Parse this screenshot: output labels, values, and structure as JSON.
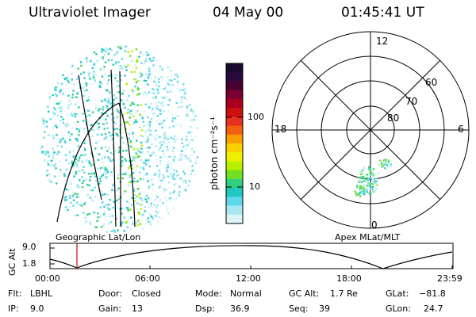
{
  "header": {
    "instrument": "Ultraviolet Imager",
    "date": "04 May 00",
    "time": "01:45:41 UT"
  },
  "geo_label": "Geographic Lat/Lon",
  "apex_label": "Apex MLat/MLT",
  "colorbar": {
    "label": "photon cm⁻²s⁻¹",
    "ticks": [
      "100",
      "10"
    ],
    "colors": [
      "#1a0a2e",
      "#2a0a3e",
      "#4a0033",
      "#7a0030",
      "#a8001e",
      "#cc1010",
      "#e83020",
      "#f06010",
      "#f8a000",
      "#fbd000",
      "#f0f000",
      "#b8f000",
      "#70e020",
      "#30d080",
      "#20c8c0",
      "#60d8e8",
      "#a8e8f0",
      "#dcf4f8"
    ]
  },
  "polar": {
    "mlt_labels": [
      "12",
      "18",
      "6",
      "0"
    ],
    "lat_labels": [
      "60",
      "70",
      "80"
    ]
  },
  "altitude_plot": {
    "ylabel": "GC Alt",
    "y_ticks": [
      "9.0",
      "1.8"
    ],
    "x_ticks": [
      "00:00",
      "06:00",
      "12:00",
      "18:00",
      "23:59"
    ]
  },
  "info": {
    "row1": {
      "flt_label": "Flt:",
      "flt_value": "LBHL",
      "door_label": "Door:",
      "door_value": "Closed",
      "mode_label": "Mode:",
      "mode_value": "Normal",
      "gcalt_label": "GC Alt:",
      "gcalt_value": "1.7 Re",
      "glat_label": "GLat:",
      "glat_value": "−81.8"
    },
    "row2": {
      "ip_label": "IP:",
      "ip_value": "9.0",
      "gain_label": "Gain:",
      "gain_value": "13",
      "dsp_label": "Dsp:",
      "dsp_value": "36.9",
      "seq_label": "Seq:",
      "seq_value": "39",
      "glon_label": "GLon:",
      "glon_value": "24.7"
    }
  }
}
